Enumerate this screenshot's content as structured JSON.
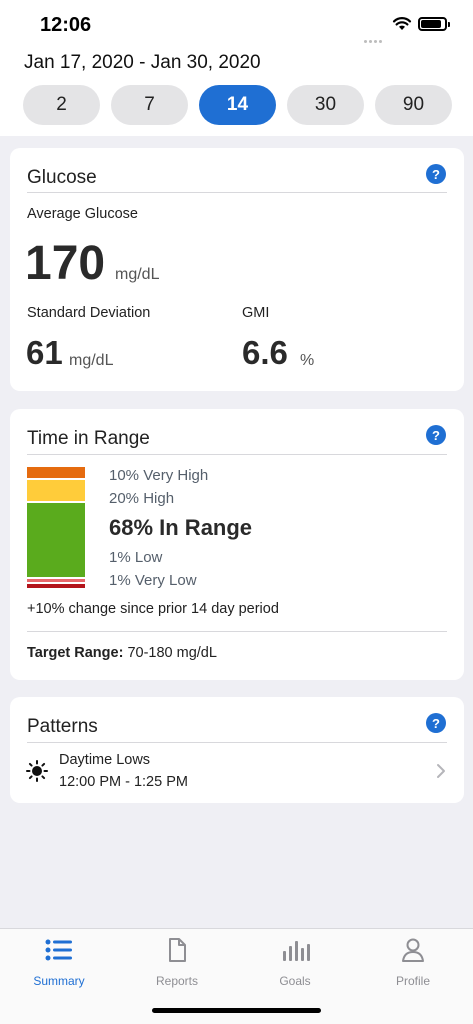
{
  "status_bar": {
    "time": "12:06"
  },
  "header": {
    "date_range": "Jan 17, 2020 - Jan 30, 2020",
    "pills": [
      {
        "label": "2",
        "active": false
      },
      {
        "label": "7",
        "active": false
      },
      {
        "label": "14",
        "active": true
      },
      {
        "label": "30",
        "active": false
      },
      {
        "label": "90",
        "active": false
      }
    ]
  },
  "glucose": {
    "title": "Glucose",
    "help": "?",
    "avg_label": "Average Glucose",
    "avg_value": "170",
    "avg_unit": "mg/dL",
    "sd_label": "Standard Deviation",
    "sd_value": "61",
    "sd_unit": "mg/dL",
    "gmi_label": "GMI",
    "gmi_value": "6.6",
    "gmi_unit": "%"
  },
  "time_in_range": {
    "title": "Time in Range",
    "help": "?",
    "very_high": "10% Very High",
    "high": "20% High",
    "in_range": "68% In Range",
    "low": "1% Low",
    "very_low": "1% Very Low",
    "change": "+10% change since prior 14 day period",
    "target_label": "Target Range:",
    "target_value": "70-180 mg/dL",
    "segments": [
      {
        "name": "very-high",
        "percent": 10,
        "color": "#e56b0f"
      },
      {
        "name": "high",
        "percent": 20,
        "color": "#ffcc3a"
      },
      {
        "name": "in-range",
        "percent": 68,
        "color": "#5aab1d"
      },
      {
        "name": "low",
        "percent": 1,
        "color": "#e8666a"
      },
      {
        "name": "very-low",
        "percent": 1,
        "color": "#b3141b"
      }
    ]
  },
  "patterns": {
    "title": "Patterns",
    "help": "?",
    "item_title": "Daytime Lows",
    "item_time": "12:00 PM - 1:25 PM"
  },
  "tabbar": {
    "items": [
      {
        "label": "Summary",
        "icon": "list-icon",
        "active": true
      },
      {
        "label": "Reports",
        "icon": "document-icon",
        "active": false
      },
      {
        "label": "Goals",
        "icon": "bar-chart-icon",
        "active": false
      },
      {
        "label": "Profile",
        "icon": "person-icon",
        "active": false
      }
    ]
  },
  "colors": {
    "accent": "#1f6fd3",
    "background": "#efeff4"
  }
}
